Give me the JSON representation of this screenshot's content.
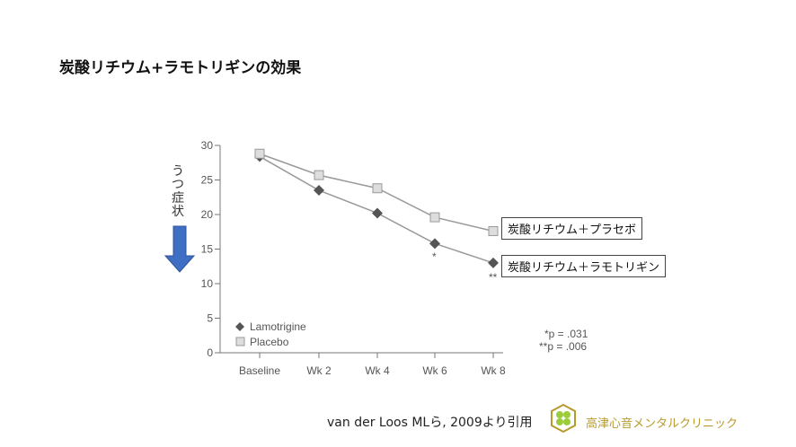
{
  "title": "炭酸リチウム+ラモトリギンの効果",
  "y_axis_label": "うつ症状",
  "annotations": {
    "placebo_box": "炭酸リチウム＋プラセボ",
    "lamotrigine_box": "炭酸リチウム＋ラモトリギン",
    "p_values": [
      "*p = .031",
      "**p = .006"
    ],
    "wk6_marker": "*",
    "wk8_marker": "**"
  },
  "citation": "van der Loos MLら, 2009より引用",
  "clinic_name": "高津心音メンタルクリニック",
  "colors": {
    "arrow": "#3f6fc4",
    "lamotrigine": "#555555",
    "placebo": "#d9d9d9",
    "clinic": "#b79a2e"
  },
  "chart_data": {
    "type": "line",
    "categories": [
      "Baseline",
      "Wk 2",
      "Wk 4",
      "Wk 6",
      "Wk 8"
    ],
    "series": [
      {
        "name": "Lamotrigine",
        "values": [
          28.4,
          23.5,
          20.2,
          15.8,
          13.0
        ]
      },
      {
        "name": "Placebo",
        "values": [
          28.8,
          25.7,
          23.8,
          19.6,
          17.6
        ]
      }
    ],
    "yticks": [
      0,
      5,
      10,
      15,
      20,
      25,
      30
    ],
    "ylim": [
      0,
      30
    ],
    "legend": "bottom-left"
  }
}
